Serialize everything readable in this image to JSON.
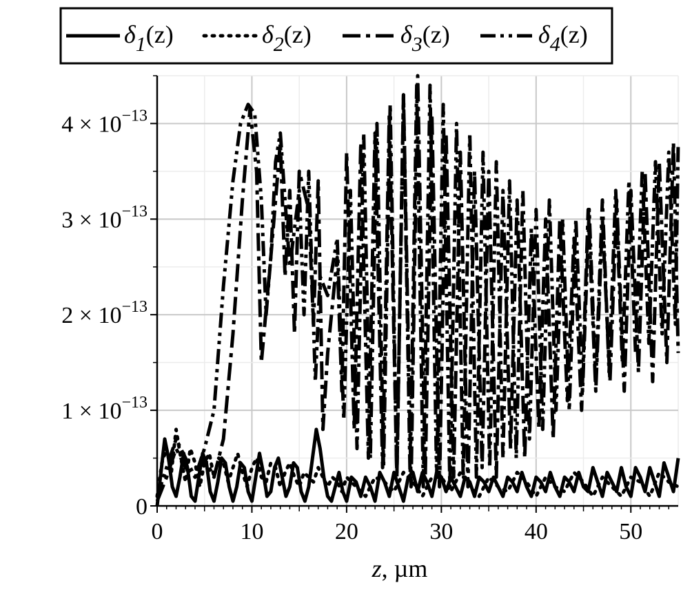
{
  "chart_data": {
    "type": "line",
    "title": "",
    "xlabel_var": "z",
    "xlabel_unit": ", µm",
    "ylabel": "",
    "xlim": [
      0,
      55
    ],
    "ylim": [
      0,
      4.5e-13
    ],
    "x_ticks": [
      0,
      10,
      20,
      30,
      40,
      50
    ],
    "x_tick_labels": [
      "0",
      "10",
      "20",
      "30",
      "40",
      "50"
    ],
    "y_ticks": [
      0,
      1e-13,
      2e-13,
      3e-13,
      4e-13
    ],
    "y_tick_mantissas": [
      "0",
      "1",
      "2",
      "3",
      "4"
    ],
    "y_tick_times": "×",
    "y_tick_base": "10",
    "y_tick_exponent": "−13",
    "grid": true,
    "legend_position": "top",
    "series": [
      {
        "name": "δ1(z)",
        "legend_symbol": "δ",
        "legend_sub": "1",
        "legend_arg": "(z)",
        "style": "solid",
        "x": [
          0,
          0.4,
          0.8,
          1.2,
          1.6,
          2.0,
          2.4,
          2.8,
          3.2,
          3.6,
          4.0,
          4.4,
          4.8,
          5.2,
          5.6,
          6.0,
          6.4,
          6.8,
          7.2,
          7.6,
          8.0,
          8.4,
          8.8,
          9.2,
          9.6,
          10.0,
          10.4,
          10.8,
          11.2,
          11.6,
          12.0,
          12.4,
          12.8,
          13.2,
          13.6,
          14.0,
          14.4,
          14.8,
          15.2,
          15.6,
          16.0,
          16.4,
          16.8,
          17.2,
          17.6,
          18.0,
          18.4,
          18.8,
          19.2,
          19.6,
          20.0,
          20.5,
          21.0,
          21.5,
          22.0,
          22.5,
          23.0,
          23.5,
          24.0,
          24.5,
          25.0,
          25.5,
          26.0,
          26.5,
          27.0,
          27.5,
          28.0,
          28.5,
          29.0,
          29.5,
          30.0,
          30.5,
          31.0,
          31.5,
          32.0,
          32.5,
          33.0,
          33.5,
          34.0,
          34.5,
          35.0,
          35.5,
          36.0,
          36.5,
          37.0,
          37.5,
          38.0,
          38.5,
          39.0,
          39.5,
          40.0,
          40.5,
          41.0,
          41.5,
          42.0,
          42.5,
          43.0,
          43.5,
          44.0,
          44.5,
          45.0,
          45.5,
          46.0,
          46.5,
          47.0,
          47.5,
          48.0,
          48.5,
          49.0,
          49.5,
          50.0,
          50.5,
          51.0,
          51.5,
          52.0,
          52.5,
          53.0,
          53.5,
          54.0,
          54.5,
          55.0
        ],
        "y": [
          0.0,
          0.35,
          0.7,
          0.5,
          0.2,
          0.1,
          0.3,
          0.55,
          0.4,
          0.1,
          0.05,
          0.3,
          0.55,
          0.45,
          0.15,
          0.05,
          0.25,
          0.5,
          0.45,
          0.2,
          0.05,
          0.2,
          0.45,
          0.4,
          0.15,
          0.05,
          0.3,
          0.55,
          0.35,
          0.1,
          0.15,
          0.4,
          0.5,
          0.3,
          0.1,
          0.2,
          0.45,
          0.4,
          0.15,
          0.05,
          0.2,
          0.5,
          0.8,
          0.6,
          0.3,
          0.1,
          0.05,
          0.2,
          0.35,
          0.15,
          0.05,
          0.3,
          0.25,
          0.1,
          0.3,
          0.2,
          0.05,
          0.35,
          0.25,
          0.1,
          0.35,
          0.2,
          0.05,
          0.3,
          0.35,
          0.15,
          0.35,
          0.25,
          0.1,
          0.35,
          0.3,
          0.15,
          0.3,
          0.2,
          0.1,
          0.3,
          0.25,
          0.1,
          0.3,
          0.25,
          0.15,
          0.3,
          0.2,
          0.1,
          0.3,
          0.25,
          0.15,
          0.35,
          0.2,
          0.1,
          0.3,
          0.25,
          0.15,
          0.35,
          0.2,
          0.1,
          0.3,
          0.25,
          0.15,
          0.35,
          0.2,
          0.15,
          0.4,
          0.25,
          0.1,
          0.35,
          0.25,
          0.15,
          0.4,
          0.2,
          0.1,
          0.4,
          0.3,
          0.15,
          0.4,
          0.25,
          0.1,
          0.45,
          0.3,
          0.15,
          0.5
        ]
      },
      {
        "name": "δ2(z)",
        "legend_symbol": "δ",
        "legend_sub": "2",
        "legend_arg": "(z)",
        "style": "dotted",
        "x": [
          0,
          0.5,
          1.0,
          1.5,
          2.0,
          2.5,
          3.0,
          3.5,
          4.0,
          4.5,
          5.0,
          5.5,
          6.0,
          6.5,
          7.0,
          7.5,
          8.0,
          8.5,
          9.0,
          9.5,
          10.0,
          10.5,
          11.0,
          11.5,
          12.0,
          12.5,
          13.0,
          13.5,
          14.0,
          14.5,
          15.0,
          15.5,
          16.0,
          16.5,
          17.0,
          17.5,
          18.0,
          18.5,
          19.0,
          19.5,
          20.0,
          21.0,
          22.0,
          23.0,
          24.0,
          25.0,
          26.0,
          27.0,
          28.0,
          29.0,
          30.0,
          31.0,
          32.0,
          33.0,
          34.0,
          35.0,
          36.0,
          37.0,
          38.0,
          39.0,
          40.0,
          41.0,
          42.0,
          43.0,
          44.0,
          45.0,
          46.0,
          47.0,
          48.0,
          49.0,
          50.0,
          51.0,
          52.0,
          53.0,
          54.0,
          55.0
        ],
        "y": [
          0.1,
          0.45,
          0.6,
          0.35,
          0.8,
          0.5,
          0.25,
          0.6,
          0.45,
          0.2,
          0.45,
          0.55,
          0.3,
          0.5,
          0.45,
          0.25,
          0.4,
          0.55,
          0.35,
          0.2,
          0.4,
          0.5,
          0.3,
          0.25,
          0.45,
          0.4,
          0.2,
          0.35,
          0.45,
          0.3,
          0.2,
          0.35,
          0.3,
          0.25,
          0.4,
          0.3,
          0.2,
          0.3,
          0.25,
          0.15,
          0.3,
          0.2,
          0.1,
          0.3,
          0.25,
          0.15,
          0.35,
          0.25,
          0.1,
          0.3,
          0.3,
          0.15,
          0.35,
          0.2,
          0.1,
          0.3,
          0.2,
          0.15,
          0.35,
          0.25,
          0.1,
          0.3,
          0.2,
          0.15,
          0.35,
          0.25,
          0.1,
          0.3,
          0.2,
          0.1,
          0.3,
          0.25,
          0.1,
          0.35,
          0.25,
          0.2
        ]
      },
      {
        "name": "δ3(z)",
        "legend_symbol": "δ",
        "legend_sub": "3",
        "legend_arg": "(z)",
        "style": "dashdot",
        "x": [
          0,
          1,
          2,
          3,
          4,
          5,
          6,
          7,
          8,
          9,
          9.8,
          10.5,
          11,
          12,
          13,
          13.5,
          14,
          14.5,
          15,
          16,
          16.5,
          17,
          17.5,
          18,
          19,
          19.5,
          20,
          20.8,
          21.5,
          22.3,
          23,
          23.8,
          24.5,
          25.3,
          26,
          26.8,
          27.5,
          28.3,
          29,
          29.8,
          30.5,
          31.3,
          32,
          32.8,
          33.5,
          34.3,
          35,
          35.8,
          36.5,
          37.3,
          38,
          38.8,
          39.5,
          40.3,
          41,
          41.8,
          42.5,
          43.3,
          44,
          44.8,
          45.5,
          46.3,
          47,
          47.8,
          48.5,
          49.3,
          50,
          50.8,
          51.5,
          52.3,
          53,
          53.8,
          54.5,
          55
        ],
        "y": [
          0.05,
          0.3,
          0.6,
          0.4,
          0.3,
          0.5,
          0.3,
          0.7,
          1.8,
          3.2,
          4.15,
          3.5,
          1.5,
          2.6,
          3.8,
          2.4,
          3.3,
          1.8,
          3.5,
          3.1,
          1.9,
          3.4,
          0.8,
          1.6,
          2.6,
          1.2,
          3.7,
          0.8,
          3.8,
          0.5,
          3.9,
          0.4,
          4.1,
          0.3,
          4.3,
          0.2,
          4.5,
          0.3,
          4.1,
          0.2,
          3.9,
          0.3,
          3.7,
          0.2,
          3.5,
          0.4,
          3.5,
          0.3,
          3.3,
          0.6,
          3.2,
          0.5,
          2.9,
          0.8,
          3.0,
          0.7,
          3.0,
          1.1,
          2.8,
          1.0,
          3.1,
          1.2,
          3.0,
          1.3,
          3.2,
          1.2,
          3.3,
          1.4,
          3.5,
          1.3,
          3.6,
          1.5,
          3.8,
          1.6
        ]
      },
      {
        "name": "δ4(z)",
        "legend_symbol": "δ",
        "legend_sub": "4",
        "legend_arg": "(z)",
        "style": "dashdotdot",
        "x": [
          0,
          1,
          2,
          3,
          4,
          5,
          6,
          7,
          8,
          8.8,
          9.6,
          10.3,
          11,
          11.5,
          12,
          12.5,
          13,
          14,
          15,
          15.5,
          16,
          16.7,
          17.2,
          18,
          19,
          19.7,
          20.4,
          21.1,
          21.8,
          22.5,
          23.2,
          23.9,
          24.6,
          25.3,
          26,
          26.7,
          27.4,
          28.1,
          28.8,
          29.5,
          30.2,
          30.9,
          31.6,
          32.3,
          33,
          33.7,
          34.4,
          35.1,
          35.8,
          36.5,
          37.2,
          37.9,
          38.6,
          39.3,
          40,
          40.7,
          41.4,
          42.1,
          42.8,
          43.5,
          44.2,
          44.9,
          45.6,
          46.3,
          47,
          47.7,
          48.4,
          49.1,
          49.8,
          50.5,
          51.2,
          51.9,
          52.6,
          53.3,
          54,
          54.7,
          55
        ],
        "y": [
          0.1,
          0.4,
          0.7,
          0.5,
          0.3,
          0.6,
          1.0,
          2.3,
          3.4,
          4.0,
          4.2,
          4.1,
          3.2,
          2.0,
          2.6,
          3.6,
          3.9,
          2.5,
          3.3,
          2.0,
          3.5,
          1.3,
          2.4,
          2.2,
          2.8,
          0.9,
          3.3,
          0.6,
          3.9,
          0.5,
          4.0,
          0.4,
          4.2,
          0.3,
          4.3,
          0.3,
          4.4,
          0.2,
          4.4,
          0.3,
          4.2,
          0.2,
          4.0,
          0.3,
          3.9,
          0.3,
          3.7,
          0.4,
          3.6,
          0.5,
          3.4,
          0.5,
          3.3,
          0.7,
          3.1,
          0.8,
          3.2,
          1.0,
          3.0,
          1.0,
          3.0,
          1.2,
          3.1,
          1.3,
          3.2,
          1.4,
          3.3,
          1.5,
          3.4,
          1.6,
          3.5,
          1.7,
          3.6,
          1.8,
          3.7,
          1.9,
          3.8
        ]
      }
    ]
  }
}
